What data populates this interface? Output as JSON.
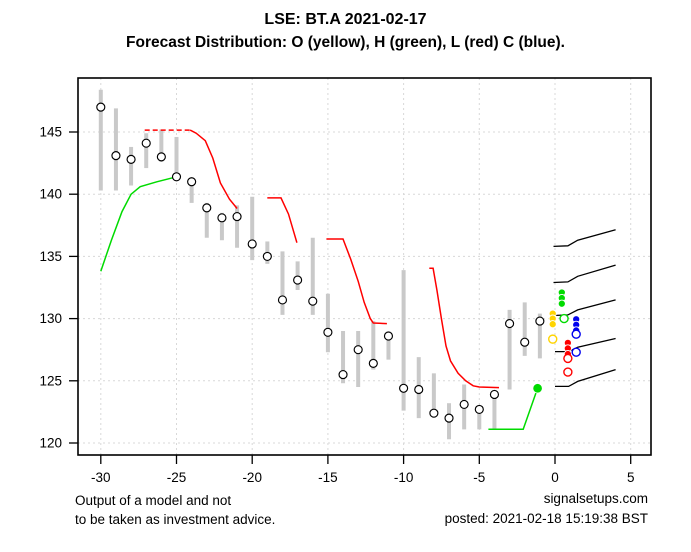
{
  "title": "LSE: BT.A 2021-02-17",
  "subtitle": "Forecast Distribution: O (yellow), H (green), L (red) C (blue).",
  "footer": {
    "disclaimer_line1": "Output of a model and not",
    "disclaimer_line2": "to be taken as investment advice.",
    "site": "signalsetups.com",
    "posted": "posted: 2021-02-18 15:19:38 BST"
  },
  "colors": {
    "yellow": "#FFD400",
    "green": "#00DB00",
    "red": "#FF0000",
    "blue": "#0000EE",
    "black": "#000000",
    "bar_gray": "#C9C9C9",
    "grid_gray": "#D8D8D8"
  },
  "chart_data": {
    "type": "line",
    "title": "LSE: BT.A 2021-02-17",
    "subtitle": "Forecast Distribution: O (yellow), H (green), L (red) C (blue).",
    "xlabel": "",
    "ylabel": "",
    "xlim": [
      -31.5,
      6.3
    ],
    "ylim": [
      119,
      149.3
    ],
    "x_ticks": [
      -30,
      -25,
      -20,
      -15,
      -10,
      -5,
      0,
      5
    ],
    "y_ticks": [
      120,
      125,
      130,
      135,
      140,
      145
    ],
    "grid": true,
    "legend_note": "O yellow, H green, L red, C blue",
    "candles": [
      {
        "x": -30,
        "high": 148.4,
        "low": 140.3,
        "close": 147.0
      },
      {
        "x": -29,
        "high": 146.9,
        "low": 140.3,
        "close": 143.1
      },
      {
        "x": -28,
        "high": 143.8,
        "low": 140.7,
        "close": 142.8
      },
      {
        "x": -27,
        "high": 144.9,
        "low": 142.1,
        "close": 144.1
      },
      {
        "x": -26,
        "high": 145.2,
        "low": 142.6,
        "close": 143.0
      },
      {
        "x": -25,
        "high": 144.6,
        "low": 141.2,
        "close": 141.4
      },
      {
        "x": -24,
        "high": 141.3,
        "low": 139.3,
        "close": 141.0
      },
      {
        "x": -23,
        "high": 139.3,
        "low": 136.5,
        "close": 138.9
      },
      {
        "x": -22,
        "high": 138.5,
        "low": 136.3,
        "close": 138.1
      },
      {
        "x": -21,
        "high": 139.1,
        "low": 135.7,
        "close": 138.2
      },
      {
        "x": -20,
        "high": 139.8,
        "low": 134.7,
        "close": 136.0
      },
      {
        "x": -19,
        "high": 136.2,
        "low": 134.4,
        "close": 135.0
      },
      {
        "x": -18,
        "high": 135.4,
        "low": 130.3,
        "close": 131.5
      },
      {
        "x": -17,
        "high": 134.6,
        "low": 132.3,
        "close": 133.1
      },
      {
        "x": -16,
        "high": 136.5,
        "low": 130.3,
        "close": 131.4
      },
      {
        "x": -15,
        "high": 132.0,
        "low": 127.3,
        "close": 128.9
      },
      {
        "x": -14,
        "high": 129.0,
        "low": 124.8,
        "close": 125.5
      },
      {
        "x": -13,
        "high": 129.0,
        "low": 124.5,
        "close": 127.5
      },
      {
        "x": -12,
        "high": 129.8,
        "low": 125.9,
        "close": 126.4
      },
      {
        "x": -11,
        "high": 129.0,
        "low": 126.7,
        "close": 128.6
      },
      {
        "x": -10,
        "high": 133.9,
        "low": 122.6,
        "close": 124.4
      },
      {
        "x": -9,
        "high": 126.9,
        "low": 122.0,
        "close": 124.3
      },
      {
        "x": -8,
        "high": 125.6,
        "low": 122.3,
        "close": 122.4
      },
      {
        "x": -7,
        "high": 123.2,
        "low": 120.3,
        "close": 122.0
      },
      {
        "x": -6,
        "high": 124.7,
        "low": 121.1,
        "close": 123.1
      },
      {
        "x": -5,
        "high": 122.9,
        "low": 121.1,
        "close": 122.7
      },
      {
        "x": -4,
        "high": 124.1,
        "low": 121.1,
        "close": 123.9
      },
      {
        "x": -3,
        "high": 130.7,
        "low": 124.3,
        "close": 129.6
      },
      {
        "x": -2,
        "high": 131.3,
        "low": 127.0,
        "close": 128.1
      },
      {
        "x": -1,
        "high": 130.4,
        "low": 126.8,
        "close": 129.8
      }
    ],
    "lines": [
      {
        "name": "green-history-1",
        "color": "green",
        "dash": false,
        "points": [
          [
            -30,
            133.8
          ],
          [
            -29.3,
            136.3
          ],
          [
            -28.6,
            138.6
          ],
          [
            -28,
            140.0
          ],
          [
            -27.4,
            140.6
          ],
          [
            -26.3,
            141.0
          ],
          [
            -25,
            141.4
          ]
        ]
      },
      {
        "name": "red-history-1-flat",
        "color": "red",
        "dash": true,
        "points": [
          [
            -27.1,
            145.15
          ],
          [
            -24.1,
            145.15
          ]
        ]
      },
      {
        "name": "red-history-1-drop",
        "color": "red",
        "dash": false,
        "points": [
          [
            -24.1,
            145.15
          ],
          [
            -23.7,
            144.9
          ],
          [
            -23.1,
            144.3
          ],
          [
            -22.6,
            142.9
          ],
          [
            -22.1,
            140.9
          ],
          [
            -21.5,
            139.6
          ],
          [
            -21,
            138.85
          ]
        ]
      },
      {
        "name": "red-history-2",
        "color": "red",
        "dash": false,
        "points": [
          [
            -19,
            139.7
          ],
          [
            -18.1,
            139.7
          ],
          [
            -17.6,
            138.4
          ],
          [
            -17.05,
            136.1
          ]
        ]
      },
      {
        "name": "red-history-3",
        "color": "red",
        "dash": false,
        "points": [
          [
            -15.1,
            136.4
          ],
          [
            -14,
            136.4
          ],
          [
            -13.5,
            134.8
          ],
          [
            -13,
            133.0
          ],
          [
            -12.6,
            131.3
          ],
          [
            -12.2,
            130.0
          ],
          [
            -12,
            129.65
          ],
          [
            -11.1,
            129.6
          ]
        ]
      },
      {
        "name": "red-history-4",
        "color": "red",
        "dash": false,
        "points": [
          [
            -8.3,
            134.05
          ],
          [
            -8.05,
            134.05
          ],
          [
            -7.8,
            132.3
          ],
          [
            -7.5,
            130.0
          ],
          [
            -7.2,
            127.8
          ],
          [
            -6.9,
            126.6
          ],
          [
            -6.4,
            125.6
          ],
          [
            -5.9,
            125.0
          ],
          [
            -5.4,
            124.6
          ],
          [
            -5,
            124.5
          ],
          [
            -3.7,
            124.45
          ]
        ]
      },
      {
        "name": "green-history-2",
        "color": "green",
        "dash": false,
        "points": [
          [
            -4.4,
            121.1
          ],
          [
            -2.1,
            121.1
          ],
          [
            -1.15,
            124.4
          ]
        ]
      },
      {
        "name": "forecast-line-1",
        "color": "black",
        "dash": false,
        "points": [
          [
            -0.1,
            135.8
          ],
          [
            0.85,
            135.85
          ],
          [
            1.5,
            136.3
          ],
          [
            4,
            137.15
          ]
        ]
      },
      {
        "name": "forecast-line-2",
        "color": "black",
        "dash": false,
        "points": [
          [
            -0.1,
            132.9
          ],
          [
            0.85,
            132.95
          ],
          [
            1.5,
            133.4
          ],
          [
            4,
            134.3
          ]
        ]
      },
      {
        "name": "forecast-line-3",
        "color": "black",
        "dash": false,
        "points": [
          [
            -0.1,
            130.25
          ],
          [
            0.85,
            130.3
          ],
          [
            1.5,
            130.7
          ],
          [
            4,
            131.5
          ]
        ]
      },
      {
        "name": "forecast-line-4",
        "color": "black",
        "dash": false,
        "points": [
          [
            0,
            127.35
          ],
          [
            0.9,
            127.35
          ],
          [
            1.5,
            127.7
          ],
          [
            4,
            128.4
          ]
        ]
      },
      {
        "name": "forecast-line-5",
        "color": "black",
        "dash": false,
        "points": [
          [
            0,
            124.55
          ],
          [
            0.9,
            124.55
          ],
          [
            1.5,
            124.95
          ],
          [
            4,
            125.9
          ]
        ]
      }
    ],
    "dots": [
      {
        "color": "yellow",
        "filled": true,
        "x": -0.15,
        "y": 130.4
      },
      {
        "color": "yellow",
        "filled": true,
        "x": -0.15,
        "y": 130.0
      },
      {
        "color": "yellow",
        "filled": true,
        "x": -0.15,
        "y": 129.55
      },
      {
        "color": "yellow",
        "filled": false,
        "x": -0.15,
        "y": 128.35
      },
      {
        "color": "green",
        "filled": true,
        "x": 0.45,
        "y": 132.1
      },
      {
        "color": "green",
        "filled": true,
        "x": 0.45,
        "y": 131.65
      },
      {
        "color": "green",
        "filled": true,
        "x": 0.45,
        "y": 131.2
      },
      {
        "color": "green",
        "filled": false,
        "x": 0.6,
        "y": 130.0
      },
      {
        "color": "green",
        "filled": true,
        "x": -1.15,
        "y": 124.4,
        "big": true
      },
      {
        "color": "red",
        "filled": true,
        "x": 0.85,
        "y": 128.05
      },
      {
        "color": "red",
        "filled": true,
        "x": 0.85,
        "y": 127.6
      },
      {
        "color": "red",
        "filled": true,
        "x": 0.85,
        "y": 127.15
      },
      {
        "color": "red",
        "filled": false,
        "x": 0.85,
        "y": 126.8
      },
      {
        "color": "red",
        "filled": false,
        "x": 0.85,
        "y": 125.7
      },
      {
        "color": "blue",
        "filled": true,
        "x": 1.4,
        "y": 129.95
      },
      {
        "color": "blue",
        "filled": true,
        "x": 1.4,
        "y": 129.5
      },
      {
        "color": "blue",
        "filled": true,
        "x": 1.4,
        "y": 129.05
      },
      {
        "color": "blue",
        "filled": false,
        "x": 1.4,
        "y": 128.75
      },
      {
        "color": "blue",
        "filled": false,
        "x": 1.4,
        "y": 127.3
      }
    ]
  }
}
